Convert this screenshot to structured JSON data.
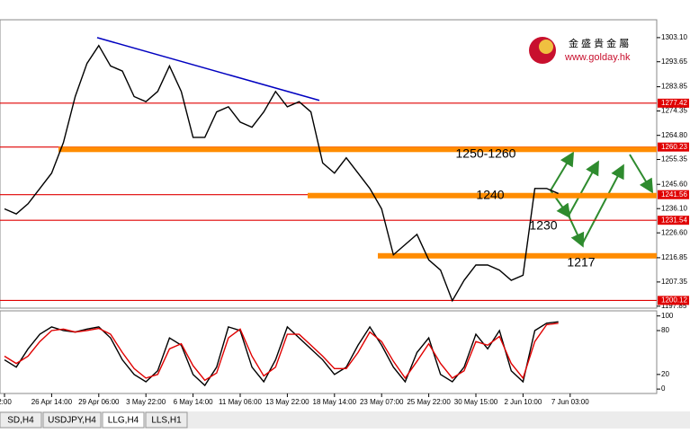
{
  "chart_data": [
    {
      "type": "line",
      "color": "#000000",
      "categories": [
        "2:00",
        null,
        null,
        null,
        "26 Apr 14:00",
        null,
        null,
        null,
        "29 Apr 06:00",
        null,
        null,
        null,
        "3 May 22:00",
        null,
        null,
        null,
        "6 May 14:00",
        null,
        null,
        null,
        "11 May 06:00",
        null,
        null,
        null,
        "13 May 22:00",
        null,
        null,
        null,
        "18 May 14:00",
        null,
        null,
        null,
        "23 May 07:00",
        null,
        null,
        null,
        "25 May 22:00",
        null,
        null,
        null,
        "30 May 15:00",
        null,
        null,
        null,
        "2 Jun 10:00",
        null,
        null,
        null,
        "7 Jun 03:00"
      ],
      "values": [
        1236,
        1234,
        1238,
        1244,
        1250,
        1262,
        1280,
        1293,
        1300,
        1292,
        1290,
        1280,
        1278,
        1282,
        1292,
        1282,
        1264,
        1264,
        1274,
        1276,
        1270,
        1268,
        1274,
        1282,
        1276,
        1278,
        1274,
        1254,
        1250,
        1256,
        1250,
        1244,
        1236,
        1218,
        1222,
        1226,
        1216,
        1212,
        1200,
        1208,
        1214,
        1214,
        1212,
        1208,
        1210,
        1244,
        1244,
        1242,
        null
      ],
      "ylim": [
        1197.1,
        1310.1
      ],
      "yticks": [
        {
          "value": 1303.1,
          "label": "1303.10"
        },
        {
          "value": 1293.65,
          "label": "1293.65"
        },
        {
          "value": 1283.85,
          "label": "1283.85"
        },
        {
          "value": 1274.35,
          "label": "1274.35"
        },
        {
          "value": 1264.8,
          "label": "1264.80"
        },
        {
          "value": 1255.35,
          "label": "1255.35"
        },
        {
          "value": 1245.6,
          "label": "1245.60"
        },
        {
          "value": 1236.1,
          "label": "1236.10"
        },
        {
          "value": 1226.6,
          "label": "1226.60"
        },
        {
          "value": 1216.85,
          "label": "1216.85"
        },
        {
          "value": 1207.35,
          "label": "1207.35"
        },
        {
          "value": 1197.85,
          "label": "1197.85"
        }
      ],
      "levels": [
        1277.42,
        1260.23,
        1241.56,
        1231.54,
        1200.12
      ],
      "level_color": "#e00000",
      "zones": [
        1259.3,
        1241.2,
        1217.6
      ],
      "zone_color": "#ff8c00",
      "trendline": {
        "values": [
          1303.1,
          1278.5
        ],
        "color": "#0000c0"
      },
      "annotations": [
        "1250-1260",
        "1240",
        "1230",
        "1217"
      ]
    },
    {
      "type": "line",
      "ylim": [
        -6,
        107
      ],
      "yticks": [
        0,
        20,
        80,
        100
      ],
      "series": [
        {
          "color": "#000000",
          "values": [
            40,
            30,
            55,
            75,
            85,
            80,
            78,
            82,
            85,
            70,
            40,
            20,
            10,
            25,
            70,
            60,
            20,
            5,
            30,
            85,
            80,
            30,
            10,
            40,
            85,
            70,
            55,
            40,
            20,
            30,
            60,
            85,
            60,
            30,
            10,
            50,
            70,
            20,
            10,
            30,
            75,
            55,
            80,
            25,
            10,
            80,
            90,
            92,
            null
          ]
        },
        {
          "color": "#e00000",
          "values": [
            45,
            35,
            45,
            65,
            80,
            82,
            78,
            80,
            83,
            75,
            50,
            28,
            15,
            20,
            55,
            62,
            32,
            12,
            22,
            70,
            82,
            45,
            18,
            30,
            75,
            75,
            60,
            45,
            28,
            28,
            50,
            78,
            65,
            38,
            15,
            38,
            62,
            35,
            15,
            25,
            65,
            60,
            72,
            35,
            15,
            65,
            88,
            90,
            null
          ]
        }
      ]
    }
  ],
  "tabs": [
    "SD,H4",
    "USDJPY,H4",
    "LLG,H4",
    "LLS,H1"
  ],
  "logo": {
    "name": "金 盛 貴 金 屬",
    "url": "www.golday.hk"
  }
}
